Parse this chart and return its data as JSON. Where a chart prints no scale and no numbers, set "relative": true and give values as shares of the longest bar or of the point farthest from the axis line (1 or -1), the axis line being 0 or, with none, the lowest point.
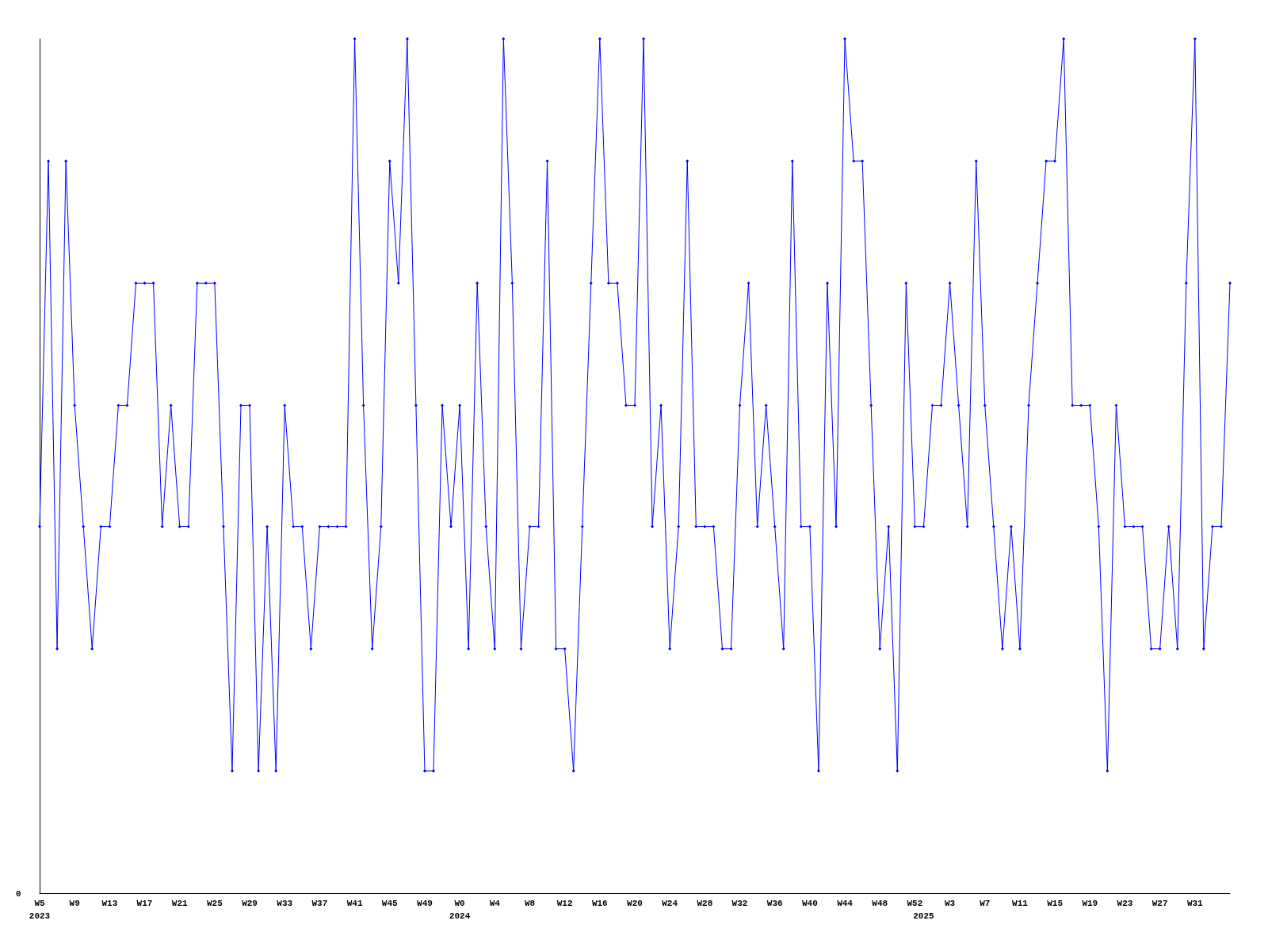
{
  "chart_data": {
    "type": "line",
    "relative": true,
    "annotations": [
      "0"
    ],
    "categories": [
      "W5\n2023",
      null,
      null,
      null,
      "W9",
      null,
      null,
      null,
      "W13",
      null,
      null,
      null,
      "W17",
      null,
      null,
      null,
      "W21",
      null,
      null,
      null,
      "W25",
      null,
      null,
      null,
      "W29",
      null,
      null,
      null,
      "W33",
      null,
      null,
      null,
      "W37",
      null,
      null,
      null,
      "W41",
      null,
      null,
      null,
      "W45",
      null,
      null,
      null,
      "W49",
      null,
      null,
      null,
      "W0\n2024",
      null,
      null,
      null,
      "W4",
      null,
      null,
      null,
      "W8",
      null,
      null,
      null,
      "W12",
      null,
      null,
      null,
      "W16",
      null,
      null,
      null,
      "W20",
      null,
      null,
      null,
      "W24",
      null,
      null,
      null,
      "W28",
      null,
      null,
      null,
      "W32",
      null,
      null,
      null,
      "W36",
      null,
      null,
      null,
      "W40",
      null,
      null,
      null,
      "W44",
      null,
      null,
      null,
      "W48",
      null,
      null,
      null,
      "W52",
      "\n2025",
      null,
      null,
      "W3",
      null,
      null,
      null,
      "W7",
      null,
      null,
      null,
      "W11",
      null,
      null,
      null,
      "W15",
      null,
      null,
      null,
      "W19",
      null,
      null,
      null,
      "W23",
      null,
      null,
      null,
      "W27",
      null,
      null,
      null,
      "W31",
      null,
      null,
      null,
      null
    ],
    "series": [
      {
        "color": "#0000ff",
        "values": [
          0.429,
          0.857,
          0.286,
          0.857,
          0.571,
          0.429,
          0.286,
          0.429,
          0.429,
          0.571,
          0.571,
          0.714,
          0.714,
          0.714,
          0.429,
          0.571,
          0.429,
          0.429,
          0.714,
          0.714,
          0.714,
          0.429,
          0.143,
          0.571,
          0.571,
          0.143,
          0.429,
          0.143,
          0.571,
          0.429,
          0.429,
          0.286,
          0.429,
          0.429,
          0.429,
          0.429,
          1,
          0.571,
          0.286,
          0.429,
          0.857,
          0.714,
          1,
          0.571,
          0.143,
          0.143,
          0.571,
          0.429,
          0.571,
          0.286,
          0.714,
          0.429,
          0.286,
          1,
          0.714,
          0.286,
          0.429,
          0.429,
          0.857,
          0.286,
          0.286,
          0.143,
          0.429,
          0.714,
          1,
          0.714,
          0.714,
          0.571,
          0.571,
          1,
          0.429,
          0.571,
          0.286,
          0.429,
          0.857,
          0.429,
          0.429,
          0.429,
          0.286,
          0.286,
          0.571,
          0.714,
          0.429,
          0.571,
          0.429,
          0.286,
          0.857,
          0.429,
          0.429,
          0.143,
          0.714,
          0.429,
          1,
          0.857,
          0.857,
          0.571,
          0.286,
          0.429,
          0.143,
          0.714,
          0.429,
          0.429,
          0.571,
          0.571,
          0.714,
          0.571,
          0.429,
          0.857,
          0.571,
          0.429,
          0.286,
          0.429,
          0.286,
          0.571,
          0.714,
          0.857,
          0.857,
          1,
          0.571,
          0.571,
          0.571,
          0.429,
          0.143,
          0.571,
          0.429,
          0.429,
          0.429,
          0.286,
          0.286,
          0.429,
          0.286,
          0.714,
          1,
          0.286,
          0.429,
          0.429,
          0.714
        ]
      }
    ],
    "marker": "diamond",
    "line_style": "solid"
  }
}
